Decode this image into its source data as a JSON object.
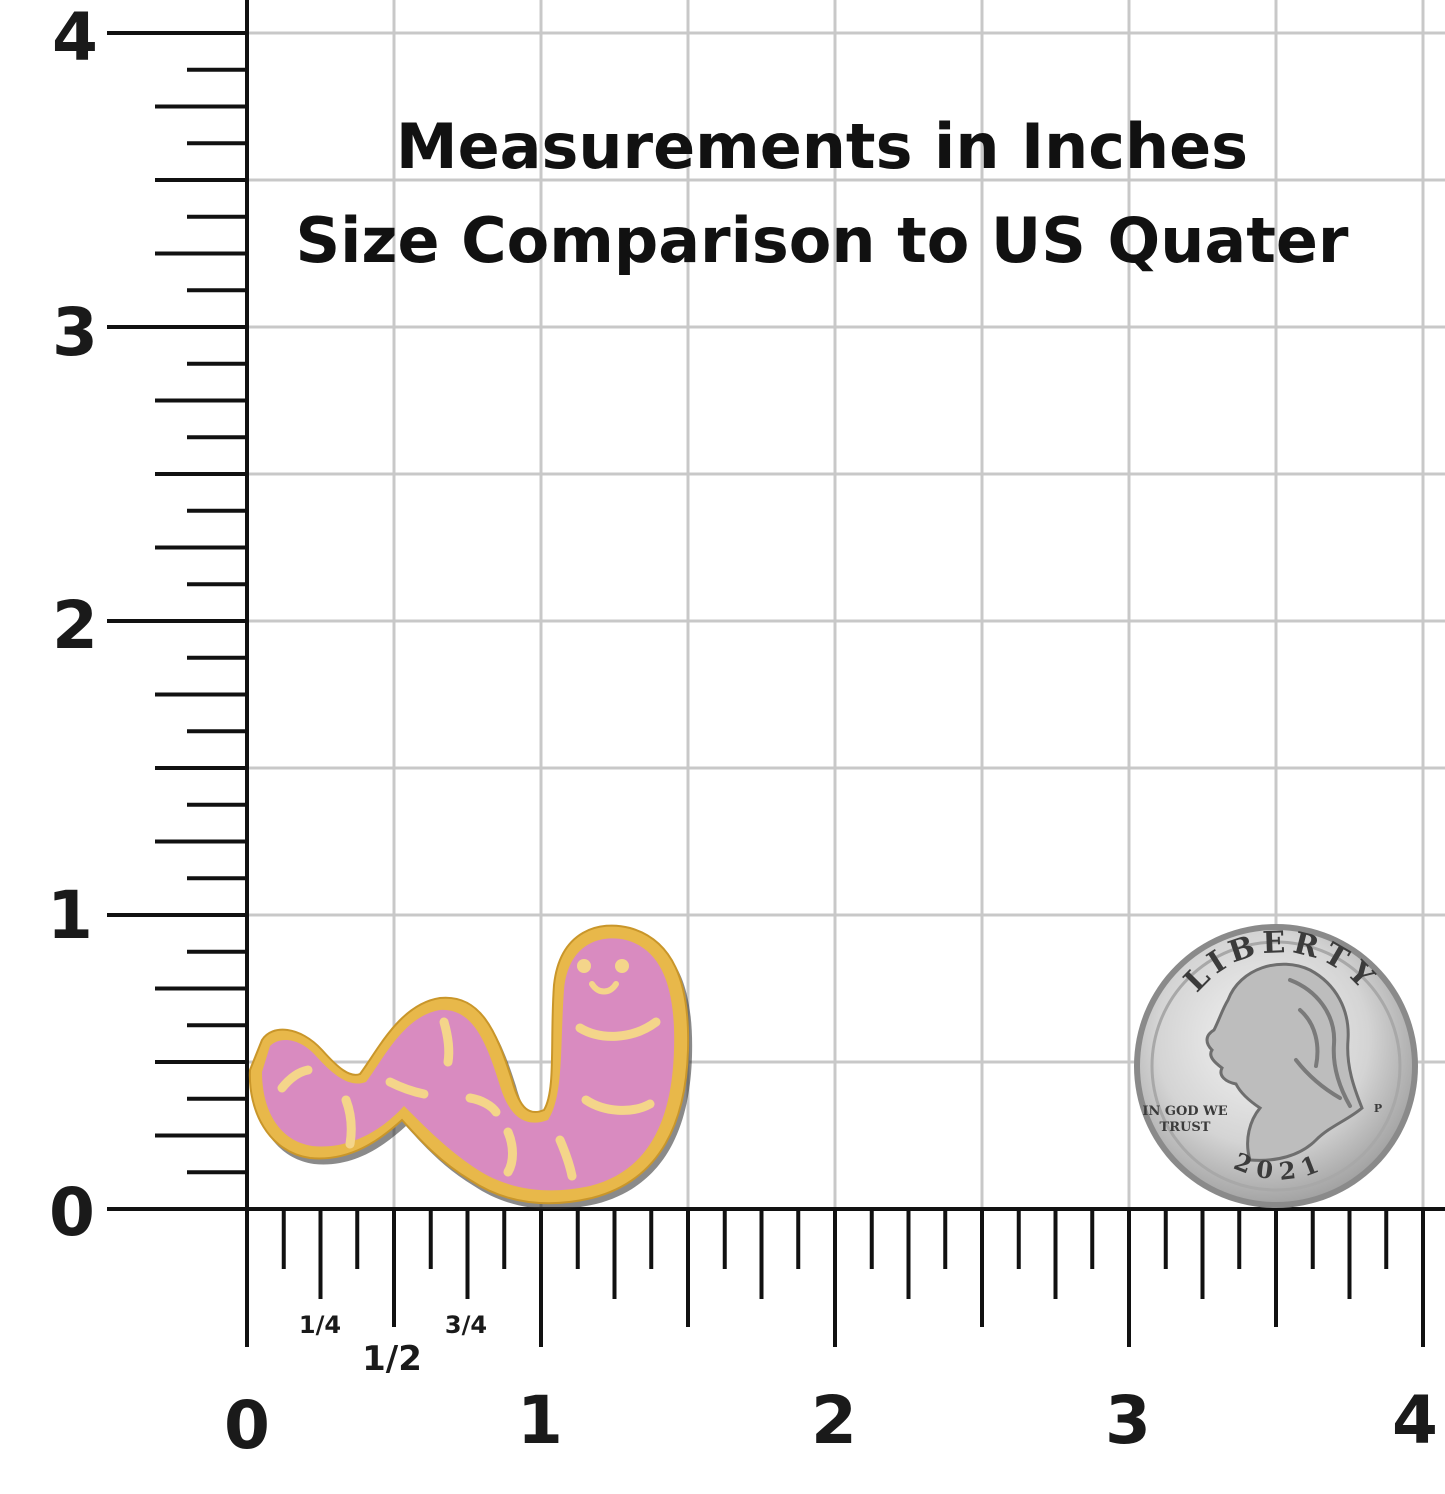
{
  "title": {
    "line1": "Measurements in Inches",
    "line2": "Size Comparison to US Quater"
  },
  "ruler": {
    "unit": "inches",
    "x_labels": [
      "0",
      "1",
      "2",
      "3",
      "4"
    ],
    "y_labels": [
      "0",
      "1",
      "2",
      "3",
      "4"
    ],
    "fraction_labels": [
      "1/4",
      "1/2",
      "3/4"
    ],
    "subdivisions_per_inch": 8
  },
  "pin": {
    "subject": "worm-enamel-pin",
    "colors": {
      "body": "#d98bc0",
      "outline": "#e8b84a",
      "stripe": "#f4d58a"
    }
  },
  "coin": {
    "subject": "us-quarter",
    "legend": "LIBERTY",
    "motto_line1": "IN GOD WE",
    "motto_line2": "TRUST",
    "year": "2021",
    "mint_mark": "P"
  },
  "colors": {
    "grid": "#c8c8c8",
    "ruler": "#111111",
    "text": "#111111"
  }
}
